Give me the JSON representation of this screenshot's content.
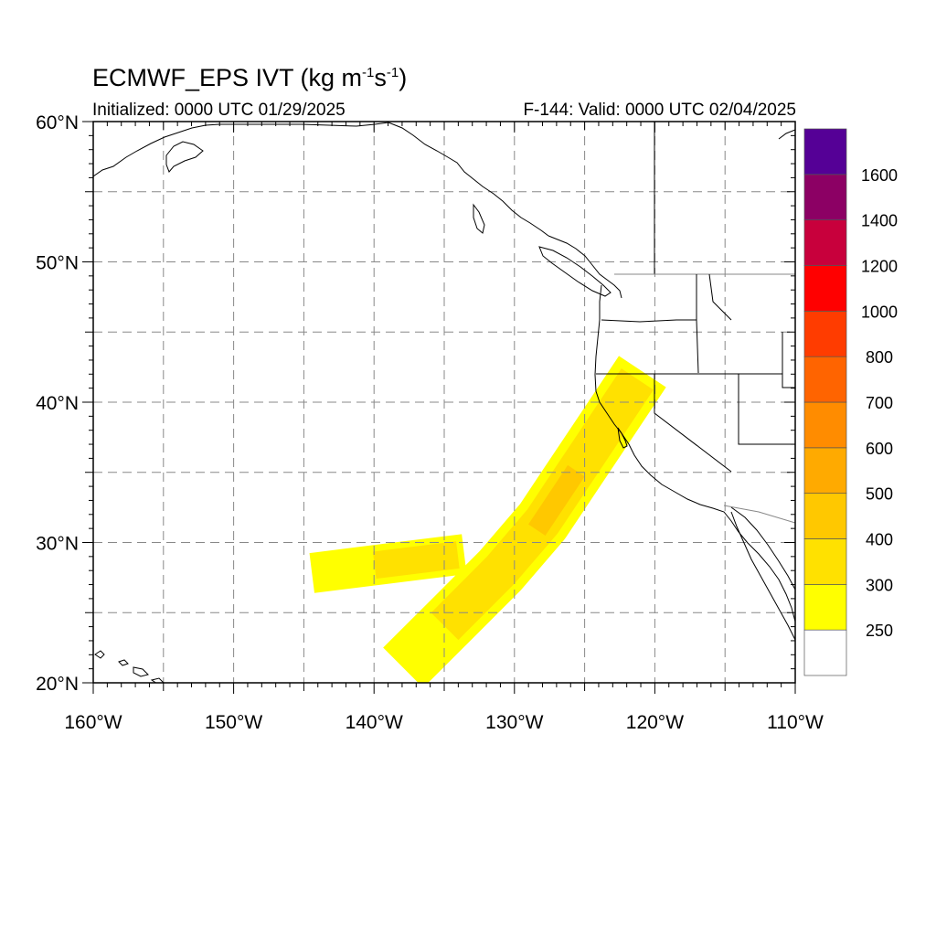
{
  "title": {
    "main_prefix": "ECMWF_EPS IVT (kg m",
    "sup1": "-1",
    "mid": "s",
    "sup2": "-1",
    "suffix": ")"
  },
  "subtitle_left": "Initialized: 0000 UTC 01/29/2025",
  "subtitle_right": "F-144: Valid: 0000 UTC 02/04/2025",
  "map": {
    "lon_range": [
      -160,
      -110
    ],
    "lat_range": [
      20,
      60
    ],
    "lat_ticks": [
      {
        "value": 60,
        "label": "60°N"
      },
      {
        "value": 50,
        "label": "50°N"
      },
      {
        "value": 40,
        "label": "40°N"
      },
      {
        "value": 30,
        "label": "30°N"
      },
      {
        "value": 20,
        "label": "20°N"
      }
    ],
    "lon_ticks": [
      {
        "value": -160,
        "label": "160°W"
      },
      {
        "value": -150,
        "label": "150°W"
      },
      {
        "value": -140,
        "label": "140°W"
      },
      {
        "value": -130,
        "label": "130°W"
      },
      {
        "value": -120,
        "label": "120°W"
      },
      {
        "value": -110,
        "label": "110°W"
      }
    ],
    "grid_spacing_deg": 5,
    "grid_style": "dashed"
  },
  "colorbar": {
    "levels": [
      "250",
      "300",
      "400",
      "500",
      "600",
      "700",
      "800",
      "1000",
      "1200",
      "1400",
      "1600"
    ],
    "colors": [
      "#ffffff",
      "#ffff00",
      "#ffe100",
      "#ffc800",
      "#ffaa00",
      "#ff8c00",
      "#ff6400",
      "#ff3c00",
      "#ff0000",
      "#c8003c",
      "#8c0064",
      "#550096"
    ]
  },
  "ivt_plume": {
    "main_band": [
      {
        "lon": -136.5,
        "lat": 22.5,
        "ivt": 260
      },
      {
        "lon": -134,
        "lat": 25,
        "ivt": 320
      },
      {
        "lon": -131,
        "lat": 28,
        "ivt": 380
      },
      {
        "lon": -128,
        "lat": 31.5,
        "ivt": 420
      },
      {
        "lon": -126,
        "lat": 34.5,
        "ivt": 420
      },
      {
        "lon": -124,
        "lat": 37.5,
        "ivt": 380
      },
      {
        "lon": -122,
        "lat": 40.5,
        "ivt": 300
      }
    ],
    "west_arm": [
      {
        "lon": -143,
        "lat": 28,
        "ivt": 260
      },
      {
        "lon": -139,
        "lat": 28.5,
        "ivt": 300
      },
      {
        "lon": -135,
        "lat": 29,
        "ivt": 310
      }
    ]
  }
}
